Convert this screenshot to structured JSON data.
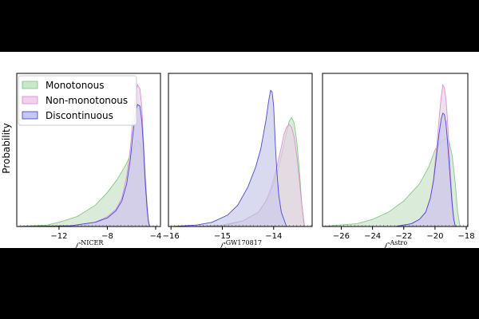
{
  "ylabel": "Probability",
  "legend": {
    "placement": "top-left",
    "entries": [
      {
        "label": "Monotonous",
        "fill": "#c8e8c8",
        "stroke": "#7cc27c"
      },
      {
        "label": "Non-monotonous",
        "fill": "#f0d2ec",
        "stroke": "#d58ad0"
      },
      {
        "label": "Discontinuous",
        "fill": "#c6c6f0",
        "stroke": "#3a3ad2"
      }
    ]
  },
  "overlap_fill": "#d2d2d2",
  "chart_data": [
    {
      "type": "area",
      "xlabel_base": "ℒ",
      "xlabel_sup": "NICER",
      "xlim": [
        -15.5,
        -3.6
      ],
      "ylim": [
        0,
        1.08
      ],
      "xticks": [
        -12,
        -8,
        -4
      ],
      "xtick_labels": [
        "−12",
        "−8",
        "−4"
      ],
      "series": [
        {
          "name": "Monotonous",
          "x": [
            -15.5,
            -13,
            -12,
            -10.5,
            -9,
            -8,
            -7.2,
            -6.5,
            -6,
            -5.6,
            -5.3,
            -5.05,
            -4.85,
            -4.7,
            -4.6
          ],
          "y": [
            0,
            0.01,
            0.03,
            0.07,
            0.15,
            0.24,
            0.33,
            0.43,
            0.52,
            0.61,
            0.59,
            0.48,
            0.25,
            0.05,
            0
          ]
        },
        {
          "name": "Non-monotonous",
          "x": [
            -15.5,
            -11,
            -9,
            -8,
            -7.3,
            -6.8,
            -6.4,
            -6.1,
            -5.9,
            -5.7,
            -5.5,
            -5.3,
            -5.15,
            -5.0,
            -4.85,
            -4.7,
            -4.6,
            -4.5
          ],
          "y": [
            0,
            0.005,
            0.03,
            0.07,
            0.12,
            0.2,
            0.35,
            0.55,
            0.75,
            0.92,
            1.0,
            0.97,
            0.85,
            0.6,
            0.35,
            0.15,
            0.05,
            0
          ]
        },
        {
          "name": "Discontinuous",
          "x": [
            -15.5,
            -11,
            -9,
            -8,
            -7.3,
            -6.8,
            -6.4,
            -6.1,
            -5.9,
            -5.7,
            -5.5,
            -5.3,
            -5.15,
            -5.0,
            -4.85,
            -4.7,
            -4.6,
            -4.5
          ],
          "y": [
            0,
            0.005,
            0.03,
            0.06,
            0.11,
            0.18,
            0.3,
            0.47,
            0.64,
            0.78,
            0.86,
            0.85,
            0.75,
            0.55,
            0.3,
            0.12,
            0.04,
            0
          ]
        }
      ]
    },
    {
      "type": "area",
      "xlabel_base": "ℒ",
      "xlabel_sup": "GW170817",
      "xlim": [
        -16.05,
        -13.25
      ],
      "ylim": [
        0,
        1.08
      ],
      "xticks": [
        -16,
        -15,
        -14
      ],
      "xtick_labels": [
        "−16",
        "−15",
        "−14"
      ],
      "series": [
        {
          "name": "Monotonous",
          "x": [
            -15.5,
            -15.0,
            -14.6,
            -14.3,
            -14.1,
            -14.0,
            -13.9,
            -13.8,
            -13.7,
            -13.65,
            -13.6,
            -13.55,
            -13.5,
            -13.45,
            -13.4
          ],
          "y": [
            0,
            0.01,
            0.04,
            0.1,
            0.2,
            0.3,
            0.42,
            0.58,
            0.74,
            0.77,
            0.73,
            0.6,
            0.4,
            0.15,
            0
          ]
        },
        {
          "name": "Non-monotonous",
          "x": [
            -15.3,
            -14.9,
            -14.6,
            -14.3,
            -14.15,
            -14.05,
            -13.95,
            -13.85,
            -13.8,
            -13.75,
            -13.7,
            -13.65,
            -13.6,
            -13.55,
            -13.5,
            -13.45,
            -13.4
          ],
          "y": [
            0,
            0.01,
            0.04,
            0.1,
            0.18,
            0.27,
            0.4,
            0.56,
            0.65,
            0.7,
            0.72,
            0.7,
            0.63,
            0.5,
            0.33,
            0.15,
            0
          ]
        },
        {
          "name": "Discontinuous",
          "x": [
            -16.0,
            -15.5,
            -15.2,
            -14.9,
            -14.7,
            -14.5,
            -14.35,
            -14.25,
            -14.15,
            -14.1,
            -14.06,
            -14.03,
            -14.0,
            -13.97,
            -13.94,
            -13.9,
            -13.85,
            -13.75
          ],
          "y": [
            0,
            0.01,
            0.03,
            0.08,
            0.15,
            0.28,
            0.42,
            0.55,
            0.75,
            0.88,
            0.96,
            0.95,
            0.85,
            0.6,
            0.4,
            0.22,
            0.1,
            0
          ]
        }
      ]
    },
    {
      "type": "area",
      "xlabel_base": "ℒ",
      "xlabel_sup": "Astro",
      "xlim": [
        -27.2,
        -17.9
      ],
      "ylim": [
        0,
        1.08
      ],
      "xticks": [
        -26,
        -24,
        -22,
        -20,
        -18
      ],
      "xtick_labels": [
        "−26",
        "−24",
        "−22",
        "−20",
        "−18"
      ],
      "series": [
        {
          "name": "Monotonous",
          "x": [
            -27.2,
            -25,
            -24,
            -23,
            -22,
            -21,
            -20.4,
            -20,
            -19.6,
            -19.3,
            -19.1,
            -18.9,
            -18.7,
            -18.55,
            -18.4
          ],
          "y": [
            0,
            0.02,
            0.05,
            0.1,
            0.18,
            0.3,
            0.42,
            0.54,
            0.6,
            0.62,
            0.6,
            0.5,
            0.3,
            0.1,
            0
          ]
        },
        {
          "name": "Non-monotonous",
          "x": [
            -22.5,
            -21.5,
            -21,
            -20.6,
            -20.3,
            -20.1,
            -19.9,
            -19.75,
            -19.6,
            -19.5,
            -19.4,
            -19.3,
            -19.2,
            -19.1,
            -19.0,
            -18.9,
            -18.8,
            -18.7
          ],
          "y": [
            0,
            0.02,
            0.05,
            0.1,
            0.2,
            0.33,
            0.55,
            0.75,
            0.92,
            1.0,
            0.98,
            0.9,
            0.75,
            0.55,
            0.35,
            0.18,
            0.06,
            0
          ]
        },
        {
          "name": "Discontinuous",
          "x": [
            -22.5,
            -21.5,
            -21,
            -20.6,
            -20.3,
            -20.1,
            -19.9,
            -19.75,
            -19.6,
            -19.5,
            -19.4,
            -19.3,
            -19.2,
            -19.1,
            -19.0,
            -18.9,
            -18.8,
            -18.7
          ],
          "y": [
            0,
            0.02,
            0.05,
            0.1,
            0.2,
            0.32,
            0.5,
            0.65,
            0.76,
            0.8,
            0.79,
            0.73,
            0.6,
            0.45,
            0.3,
            0.15,
            0.05,
            0
          ]
        }
      ]
    }
  ]
}
